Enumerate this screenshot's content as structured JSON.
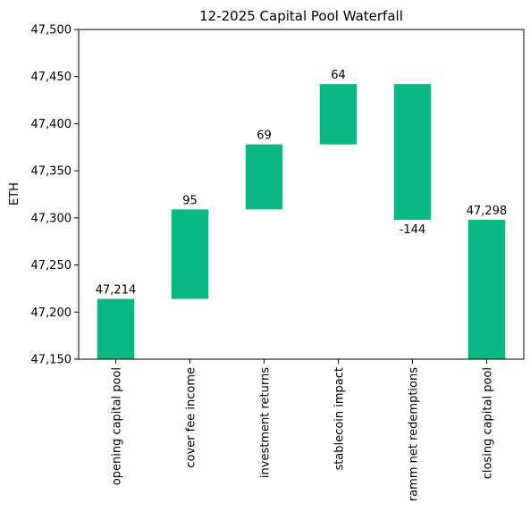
{
  "chart_data": {
    "type": "bar",
    "subtype": "waterfall",
    "title": "12-2025 Capital Pool Waterfall",
    "xlabel": "",
    "ylabel": "ETH",
    "ylim": [
      47150,
      47500
    ],
    "yticks": [
      47150,
      47200,
      47250,
      47300,
      47350,
      47400,
      47450,
      47500
    ],
    "ytick_labels": [
      "47,150",
      "47,200",
      "47,250",
      "47,300",
      "47,350",
      "47,400",
      "47,450",
      "47,500"
    ],
    "categories": [
      "opening capital pool",
      "cover fee income",
      "investment returns",
      "stablecoin impact",
      "ramm net redemptions",
      "closing capital pool"
    ],
    "bars": [
      {
        "category": "opening capital pool",
        "start": 0,
        "end": 47214,
        "label": "47,214",
        "kind": "total"
      },
      {
        "category": "cover fee income",
        "start": 47214,
        "end": 47309,
        "label": "95",
        "kind": "delta"
      },
      {
        "category": "investment returns",
        "start": 47309,
        "end": 47378,
        "label": "69",
        "kind": "delta"
      },
      {
        "category": "stablecoin impact",
        "start": 47378,
        "end": 47442,
        "label": "64",
        "kind": "delta"
      },
      {
        "category": "ramm net redemptions",
        "start": 47442,
        "end": 47298,
        "label": "-144",
        "kind": "delta"
      },
      {
        "category": "closing capital pool",
        "start": 0,
        "end": 47298,
        "label": "47,298",
        "kind": "total"
      }
    ],
    "bar_color": "#0bb783",
    "grid": false,
    "legend": "none"
  }
}
